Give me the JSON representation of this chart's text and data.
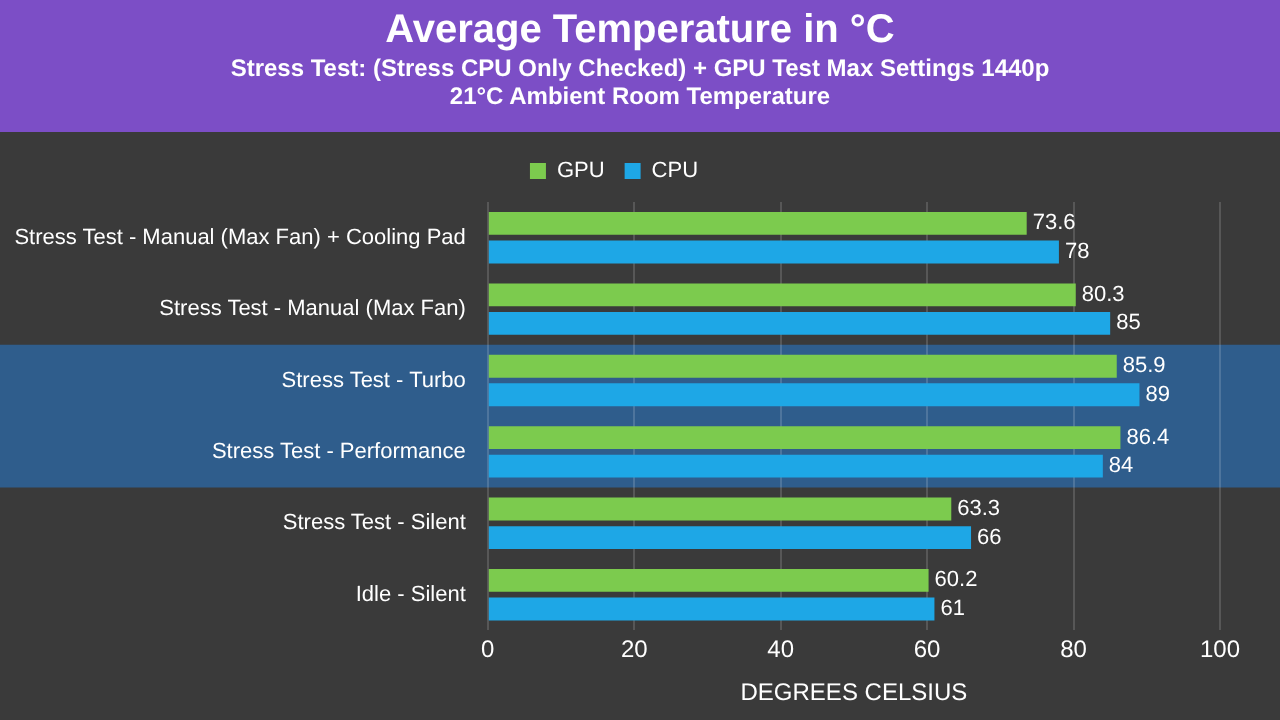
{
  "chart_data": {
    "type": "bar",
    "orientation": "horizontal",
    "title": "Average Temperature in °C",
    "subtitle": "Stress Test: (Stress CPU Only Checked) + GPU Test Max Settings 1440p\n21°C Ambient Room Temperature",
    "xlabel": "DEGREES CELSIUS",
    "categories": [
      "Stress Test - Manual (Max Fan) + Cooling Pad",
      "Stress Test - Manual (Max Fan)",
      "Stress Test - Turbo",
      "Stress Test - Performance",
      "Stress Test - Silent",
      "Idle - Silent"
    ],
    "series": [
      {
        "name": "GPU",
        "color": "#7ccb4e",
        "values": [
          73.6,
          80.3,
          85.9,
          86.4,
          63.3,
          60.2
        ]
      },
      {
        "name": "CPU",
        "color": "#1ea7e6",
        "values": [
          78,
          85,
          89,
          84,
          66,
          61
        ]
      }
    ],
    "xlim": [
      0,
      100
    ],
    "xticks": [
      0,
      20,
      40,
      60,
      80,
      100
    ],
    "grid": "x",
    "legend": "top",
    "data_labels": true,
    "bands": [
      {
        "axis": "y",
        "from": "Stress Test - Turbo",
        "to": "Stress Test - Performance",
        "color": "#2f5d8c"
      }
    ]
  }
}
